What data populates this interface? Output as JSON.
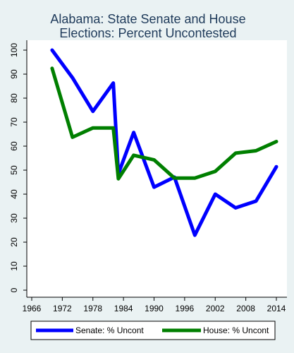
{
  "chart_data": {
    "type": "line",
    "title": "Alabama: State Senate and House Elections: Percent Uncontested",
    "title_lines": [
      "Alabama: State Senate and House",
      "Elections: Percent Uncontested"
    ],
    "xlabel": "",
    "ylabel": "",
    "xlim": [
      1966,
      2014
    ],
    "ylim": [
      0,
      100
    ],
    "x_ticks": [
      1966,
      1972,
      1978,
      1984,
      1990,
      1996,
      2002,
      2008,
      2014
    ],
    "y_ticks": [
      0,
      10,
      20,
      30,
      40,
      50,
      60,
      70,
      80,
      90,
      100
    ],
    "grid": false,
    "legend_position": "bottom",
    "series": [
      {
        "name": "Senate: % Uncont",
        "color": "#0000ff",
        "x": [
          1970,
          1974,
          1978,
          1982,
          1983,
          1986,
          1990,
          1994,
          1998,
          2002,
          2006,
          2010,
          2014
        ],
        "y": [
          100,
          88.5,
          74.5,
          86.3,
          48.5,
          65.7,
          42.9,
          47.1,
          22.9,
          40.0,
          34.3,
          37.1,
          51.4
        ]
      },
      {
        "name": "House: % Uncont",
        "color": "#007f00",
        "x": [
          1970,
          1974,
          1978,
          1982,
          1983,
          1986,
          1990,
          1994,
          1998,
          2002,
          2006,
          2010,
          2014
        ],
        "y": [
          92.4,
          63.7,
          67.6,
          67.6,
          46.4,
          56.2,
          54.3,
          46.7,
          46.7,
          49.5,
          57.1,
          58.1,
          61.9
        ]
      }
    ]
  }
}
